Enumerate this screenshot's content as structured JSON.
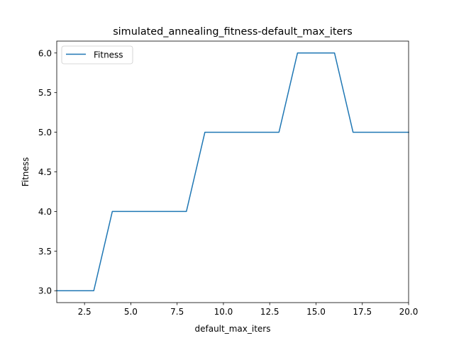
{
  "chart_data": {
    "type": "line",
    "title": "simulated_annealing_fitness-default_max_iters",
    "xlabel": "default_max_iters",
    "ylabel": "Fitness",
    "xlim": [
      1,
      20
    ],
    "ylim": [
      2.85,
      6.15
    ],
    "x_ticks": [
      2.5,
      5.0,
      7.5,
      10.0,
      12.5,
      15.0,
      17.5,
      20.0
    ],
    "x_tick_labels": [
      "2.5",
      "5.0",
      "7.5",
      "10.0",
      "12.5",
      "15.0",
      "17.5",
      "20.0"
    ],
    "y_ticks": [
      3.0,
      3.5,
      4.0,
      4.5,
      5.0,
      5.5,
      6.0
    ],
    "y_tick_labels": [
      "3.0",
      "3.5",
      "4.0",
      "4.5",
      "5.0",
      "5.5",
      "6.0"
    ],
    "grid": false,
    "legend_position": "upper-left",
    "series": [
      {
        "name": "Fitness",
        "color": "#1f77b4",
        "x": [
          1,
          2,
          3,
          4,
          5,
          6,
          7,
          8,
          9,
          10,
          11,
          12,
          13,
          14,
          15,
          16,
          17,
          18,
          19,
          20
        ],
        "y": [
          3,
          3,
          3,
          4,
          4,
          4,
          4,
          4,
          5,
          5,
          5,
          5,
          5,
          6,
          6,
          6,
          5,
          5,
          5,
          5
        ]
      }
    ]
  }
}
